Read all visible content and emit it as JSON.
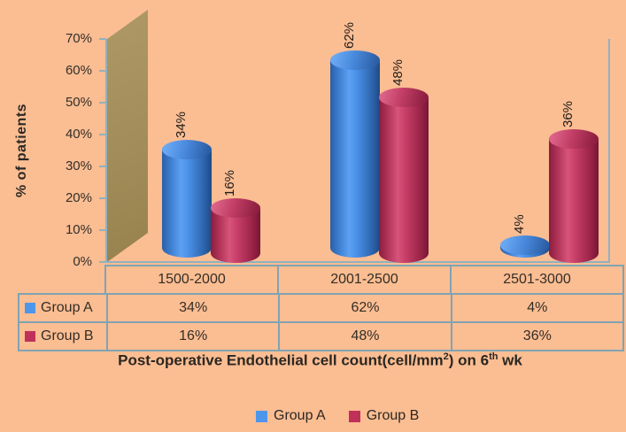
{
  "colors": {
    "background": "#FBBD92",
    "wall": "#A28D5A",
    "axis": "#8FB2C2",
    "table_border": "#81A3B3",
    "text": "#2E2A24",
    "group_a": "#4E96EA",
    "group_b": "#C0315A"
  },
  "y_axis": {
    "title": "% of patients",
    "tick_labels": [
      "0%",
      "10%",
      "20%",
      "30%",
      "40%",
      "50%",
      "60%",
      "70%"
    ]
  },
  "x_axis": {
    "title_parts": {
      "p1": "Post-operative Endothelial cell count(cell/mm",
      "sup1": "2",
      "p2": ") on 6",
      "sup2": "th",
      "p3": " wk"
    }
  },
  "chart_data": {
    "type": "bar",
    "style": "3d-cylinder",
    "xlabel": "Post-operative Endothelial cell count(cell/mm2) on 6th wk",
    "ylabel": "% of patients",
    "ylim": [
      0,
      70
    ],
    "ytick_step": 10,
    "grid": false,
    "legend_position": "bottom",
    "categories": [
      "1500-2000",
      "2001-2500",
      "2501-3000"
    ],
    "series": [
      {
        "name": "Group A",
        "color": "#4E96EA",
        "values": [
          34,
          62,
          4
        ]
      },
      {
        "name": "Group B",
        "color": "#C0315A",
        "values": [
          16,
          48,
          36
        ]
      }
    ],
    "value_label_suffix": "%"
  },
  "table": {
    "columns": [
      "1500-2000",
      "2001-2500",
      "2501-3000"
    ],
    "rows": [
      {
        "label": "Group A",
        "color": "#4E96EA",
        "values": [
          "34%",
          "62%",
          "4%"
        ]
      },
      {
        "label": "Group B",
        "color": "#C0315A",
        "values": [
          "16%",
          "48%",
          "36%"
        ]
      }
    ]
  },
  "legend": {
    "items": [
      {
        "label": "Group A",
        "color": "#4E96EA"
      },
      {
        "label": "Group B",
        "color": "#C0315A"
      }
    ]
  }
}
